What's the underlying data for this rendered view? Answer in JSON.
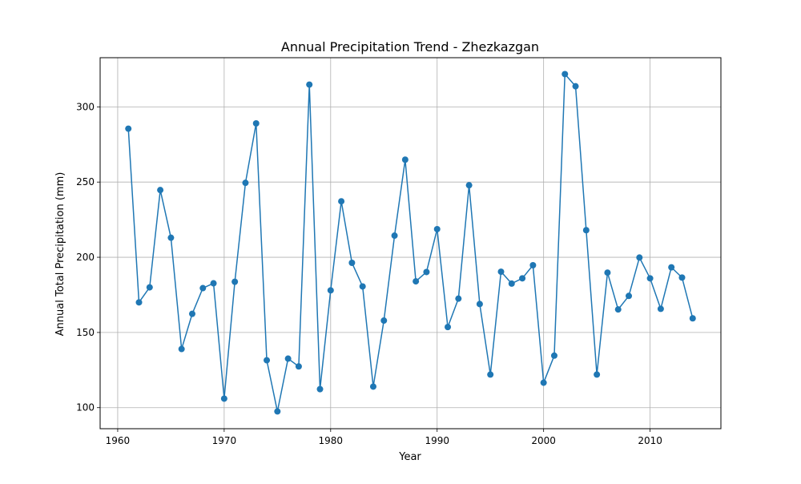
{
  "chart_data": {
    "type": "line",
    "title": "Annual Precipitation Trend - Zhezkazgan",
    "xlabel": "Year",
    "ylabel": "Annual Total Precipitation (mm)",
    "xlim": [
      1958.35,
      2016.65
    ],
    "ylim": [
      86.0,
      332.7
    ],
    "xticks": [
      1960,
      1970,
      1980,
      1990,
      2000,
      2010
    ],
    "yticks": [
      100,
      150,
      200,
      250,
      300
    ],
    "grid": true,
    "marker": "circle",
    "line_color": "#1f77b4",
    "series": [
      {
        "x": [
          1961,
          1962,
          1963,
          1964,
          1965,
          1966,
          1967,
          1968,
          1969,
          1970,
          1971,
          1972,
          1973,
          1974,
          1975,
          1976,
          1977,
          1978,
          1979,
          1980,
          1981,
          1982,
          1983,
          1984,
          1985,
          1986,
          1987,
          1988,
          1989,
          1990,
          1991,
          1992,
          1993,
          1994,
          1995,
          1996,
          1997,
          1998,
          1999,
          2000,
          2001,
          2002,
          2003,
          2004,
          2005,
          2006,
          2007,
          2008,
          2009,
          2010,
          2011,
          2012,
          2013,
          2014
        ],
        "values": [
          285.5,
          170.0,
          180.0,
          244.7,
          213.0,
          139.0,
          162.4,
          179.5,
          182.7,
          106.0,
          183.7,
          249.5,
          289.0,
          131.5,
          97.5,
          132.6,
          127.4,
          314.8,
          112.3,
          178.0,
          237.2,
          196.3,
          180.6,
          114.0,
          157.9,
          214.4,
          264.9,
          184.0,
          190.2,
          218.7,
          153.6,
          172.5,
          247.9,
          168.9,
          122.0,
          190.4,
          182.5,
          186.0,
          194.7,
          116.6,
          134.6,
          321.8,
          313.7,
          218.0,
          122.0,
          189.8,
          165.3,
          174.3,
          199.8,
          186.0,
          165.7,
          193.3,
          186.5,
          159.4
        ]
      }
    ]
  }
}
